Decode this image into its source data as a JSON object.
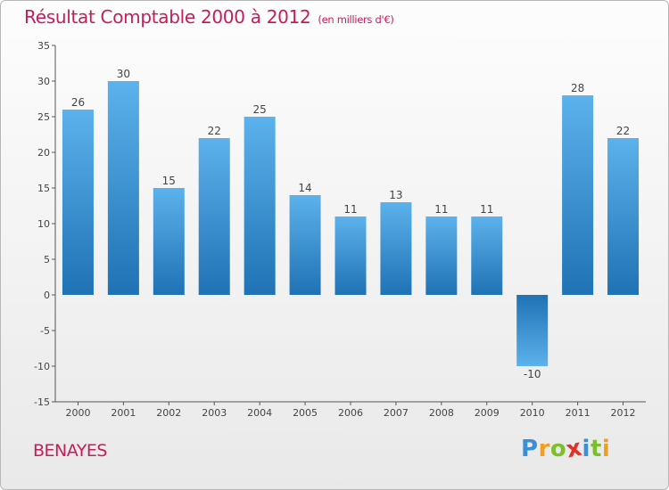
{
  "chart_data": {
    "type": "bar",
    "title": "Résultat Comptable 2000 à 2012",
    "subtitle": "(en milliers d'€)",
    "categories": [
      "2000",
      "2001",
      "2002",
      "2003",
      "2004",
      "2005",
      "2006",
      "2007",
      "2008",
      "2009",
      "2010",
      "2011",
      "2012"
    ],
    "values": [
      26,
      30,
      15,
      22,
      25,
      14,
      11,
      13,
      11,
      11,
      -10,
      28,
      22
    ],
    "data_labels": [
      "26",
      "30",
      "15",
      "22",
      "25",
      "14",
      "11",
      "13",
      "11",
      "11",
      "-10",
      "28",
      "22"
    ],
    "ylim": [
      -15,
      35
    ],
    "yticks": [
      -15,
      -10,
      -5,
      0,
      5,
      10,
      15,
      20,
      25,
      30,
      35
    ],
    "xlabel": "",
    "ylabel": "",
    "grid": false,
    "legend": "none"
  },
  "commune": "BENAYES",
  "logo": {
    "text": "Proxiti",
    "letters": [
      "P",
      "r",
      "o",
      "x",
      "i",
      "t",
      "i"
    ],
    "colors": [
      "#3a8fd6",
      "#f0a020",
      "#7bbf2a",
      "#e0302a",
      "#3a8fd6",
      "#7bbf2a",
      "#f0a020"
    ]
  },
  "colors": {
    "title": "#c41e5a",
    "bar_top": "#5cb2ec",
    "bar_bottom": "#1f72b4",
    "axis": "#555555"
  }
}
